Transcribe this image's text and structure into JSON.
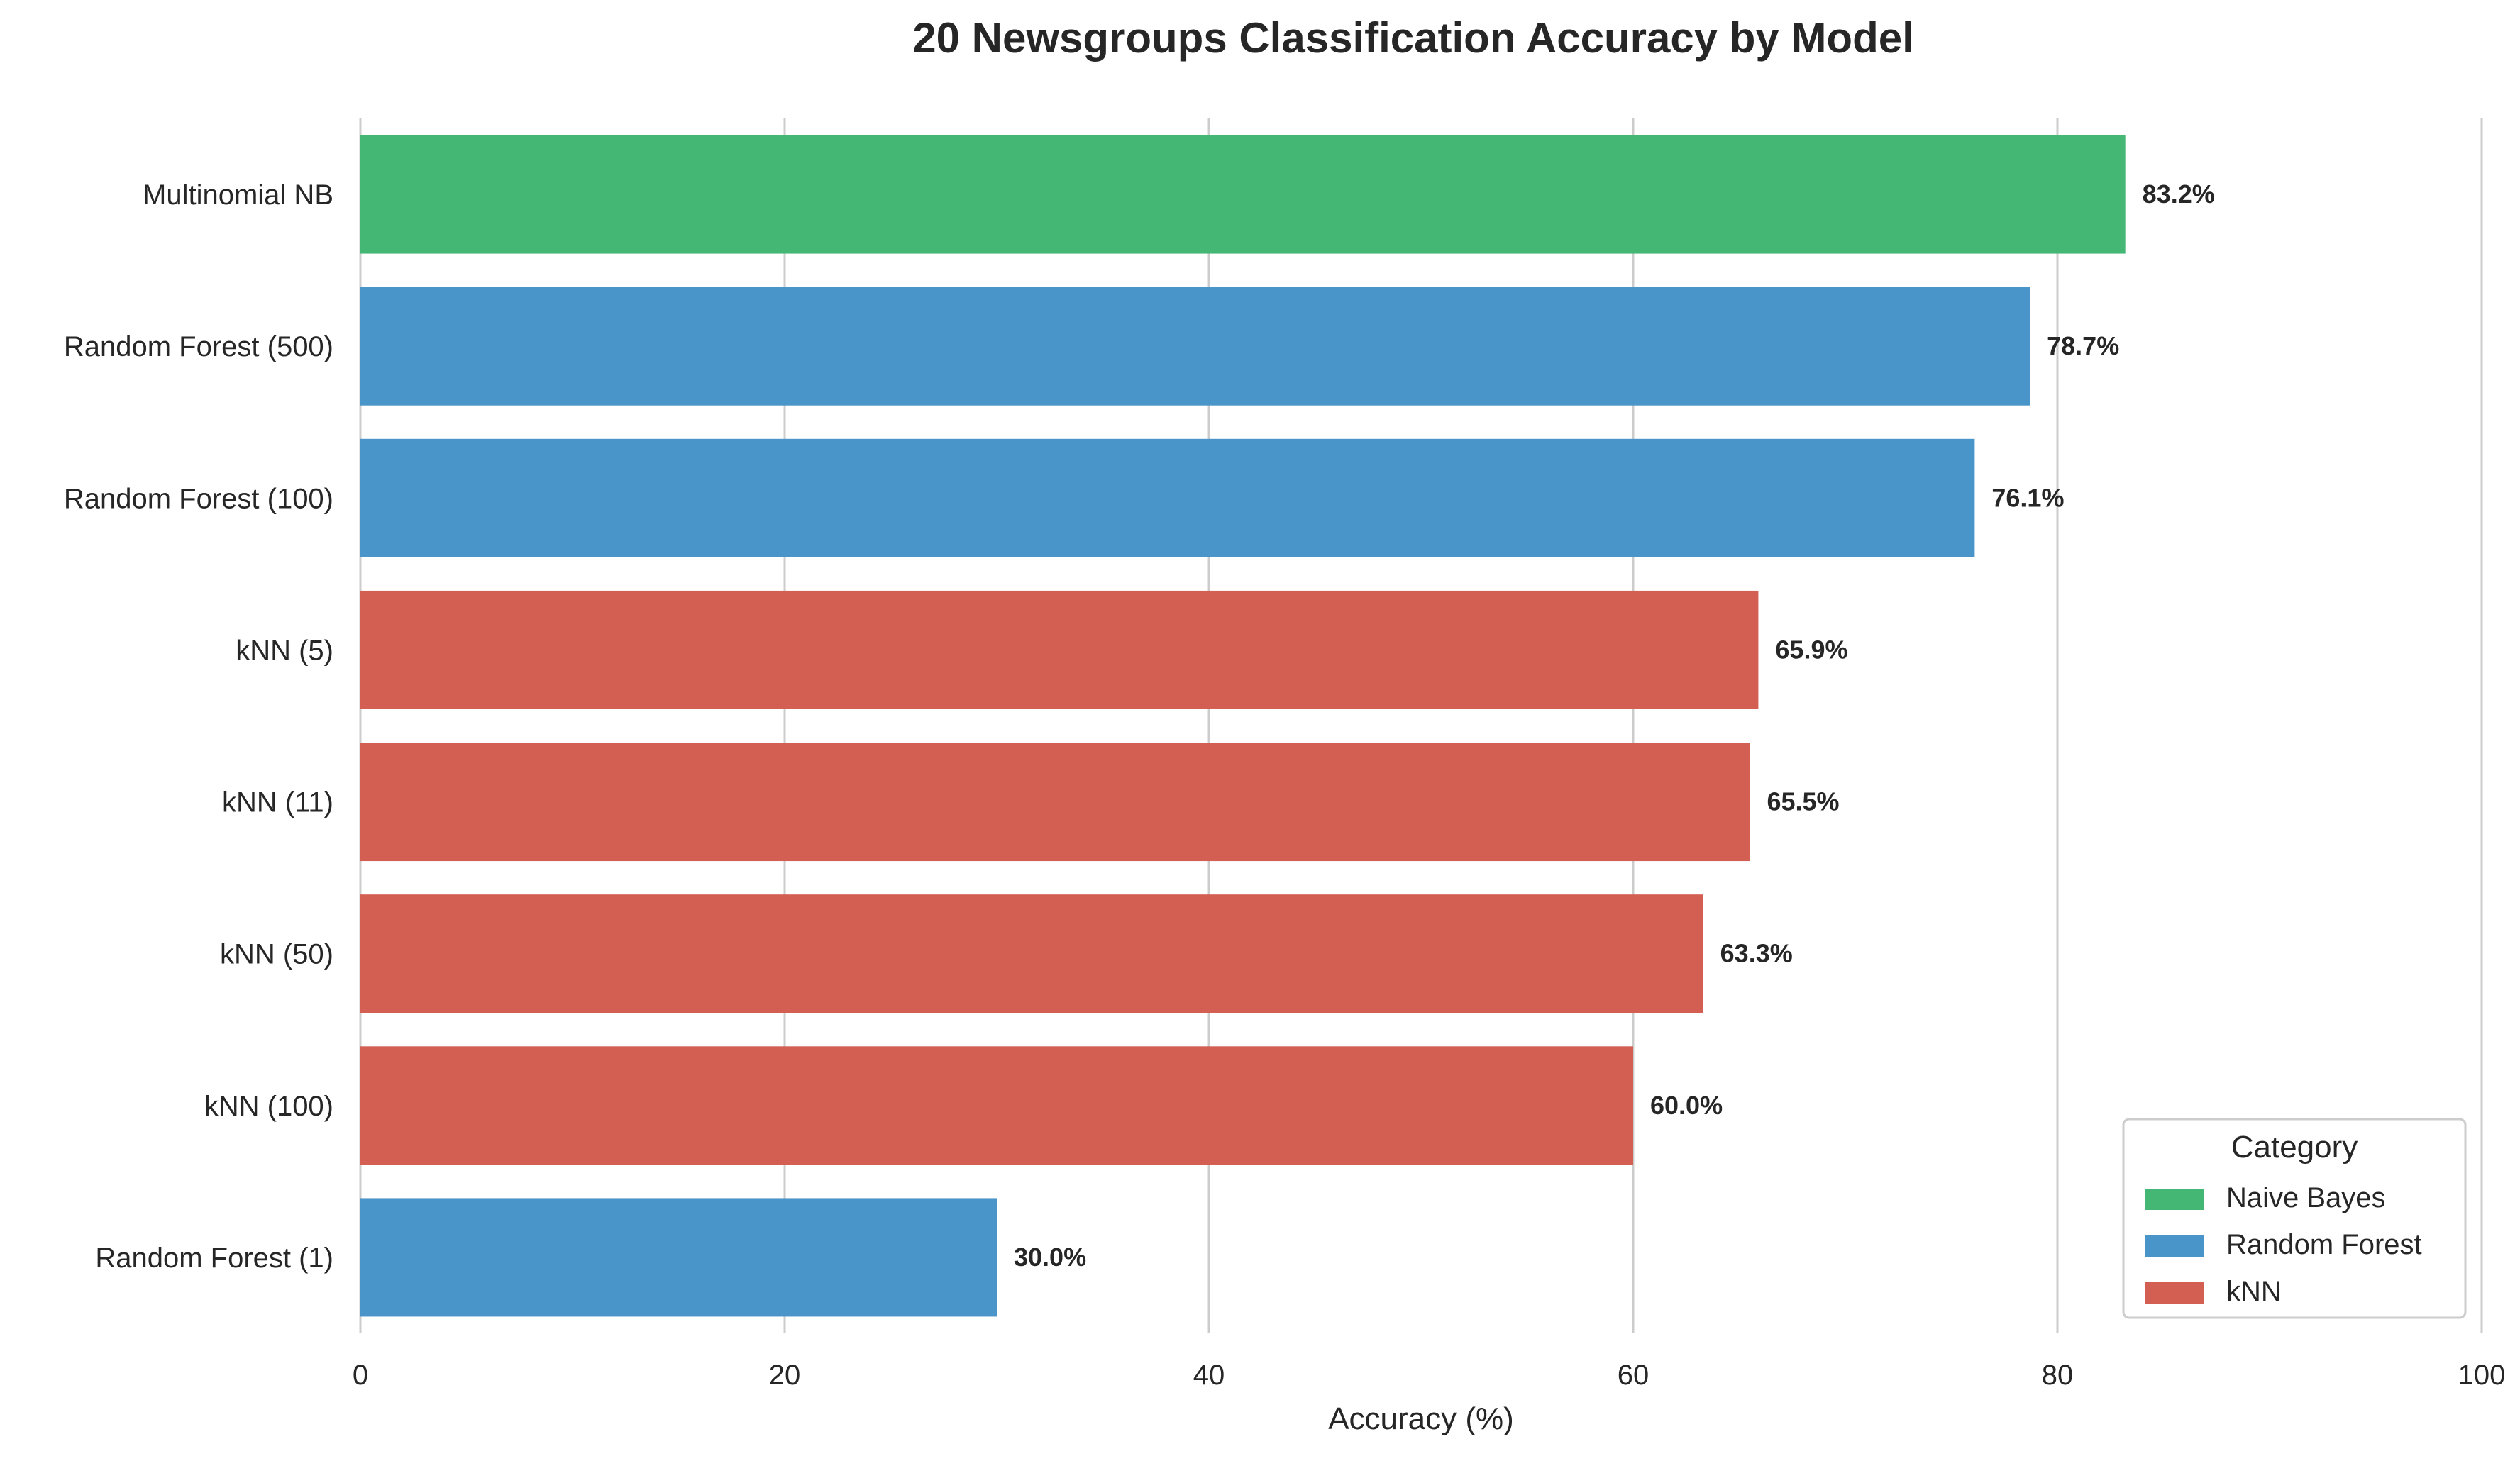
{
  "chart_data": {
    "type": "bar",
    "orientation": "horizontal",
    "title": "20 Newsgroups Classification Accuracy by Model",
    "xlabel": "Accuracy (%)",
    "ylabel": "",
    "xlim": [
      0,
      100
    ],
    "xticks": [
      0,
      20,
      40,
      60,
      80,
      100
    ],
    "grid": "vertical",
    "legend_position": "bottom-right",
    "categories": [
      "Multinomial NB",
      "Random Forest (500)",
      "Random Forest (100)",
      "kNN (5)",
      "kNN (11)",
      "kNN (50)",
      "kNN (100)",
      "Random Forest (1)"
    ],
    "values": [
      83.2,
      78.7,
      76.1,
      65.9,
      65.5,
      63.3,
      60.0,
      30.0
    ],
    "value_labels": [
      "83.2%",
      "78.7%",
      "76.1%",
      "65.9%",
      "65.5%",
      "63.3%",
      "60.0%",
      "30.0%"
    ],
    "bar_groups": [
      "Naive Bayes",
      "Random Forest",
      "Random Forest",
      "kNN",
      "kNN",
      "kNN",
      "kNN",
      "Random Forest"
    ],
    "legend": {
      "title": "Category",
      "entries": [
        {
          "name": "Naive Bayes",
          "color": "#44b774"
        },
        {
          "name": "Random Forest",
          "color": "#4994c8"
        },
        {
          "name": "kNN",
          "color": "#d35f52"
        }
      ]
    }
  }
}
